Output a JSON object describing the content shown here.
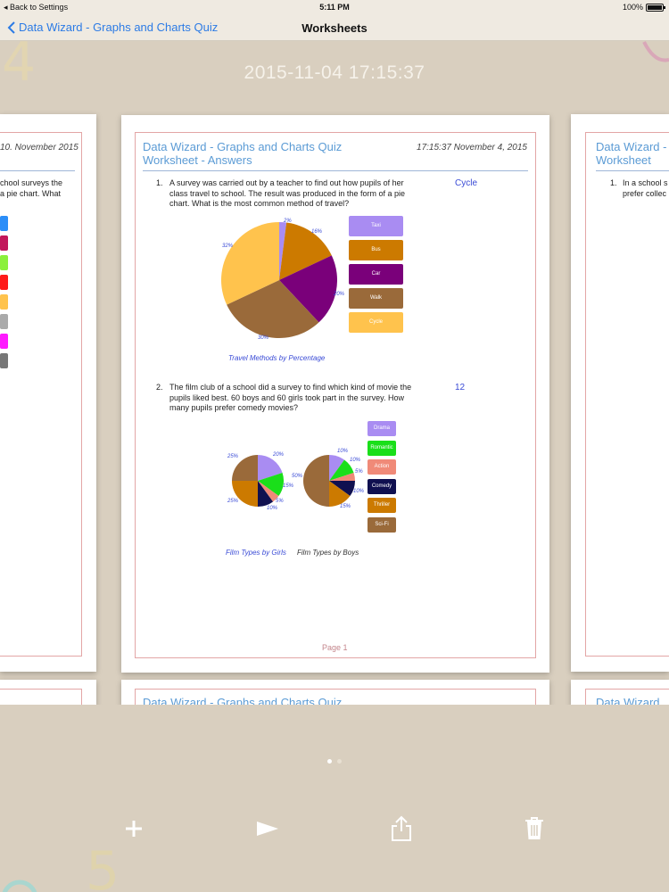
{
  "status": {
    "back_label": "Back to Settings",
    "time": "5:11 PM",
    "battery": "100%",
    "battery_level": 1.0
  },
  "nav": {
    "back_label": "Data Wizard - Graphs and Charts Quiz",
    "title": "Worksheets"
  },
  "header": {
    "datetime": "2015-11-04 17:15:37"
  },
  "decor": {
    "top_digit": "4",
    "bottom_digit": "5"
  },
  "left_page": {
    "date": "10. November 2015",
    "q_lines": [
      "chool surveys the",
      "a pie chart.  What"
    ],
    "swatches": [
      "#2c8ef8",
      "#c2185b",
      "#8bf03c",
      "#ff1a1a",
      "#ffc34d",
      "#aaaaaa",
      "#ff1aff",
      "#777777"
    ]
  },
  "main_page": {
    "title_line1": "Data Wizard - Graphs and Charts Quiz",
    "title_line2": "Worksheet - Answers",
    "date": "17:15:37  November 4, 2015",
    "q1": {
      "num": "1.",
      "lines": [
        "A survey was carried out by a teacher to find out how pupils of her",
        "class travel to school.  The result was produced in the form of a pie",
        "chart.  What is the most common method of travel?"
      ],
      "answer": "Cycle",
      "caption": "Travel Methods by Percentage",
      "legend": [
        {
          "label": "Taxi",
          "color": "#a98cf2"
        },
        {
          "label": "Bus",
          "color": "#cc7a00"
        },
        {
          "label": "Car",
          "color": "#7a007a"
        },
        {
          "label": "Walk",
          "color": "#9a6a3a"
        },
        {
          "label": "Cycle",
          "color": "#ffc34d"
        }
      ],
      "slice_labels": [
        "2%",
        "16%",
        "20%",
        "30%",
        "32%"
      ]
    },
    "q2": {
      "num": "2.",
      "lines": [
        "The film club of a school did a survey to find which kind of movie the",
        "pupils liked best.  60 boys and 60 girls took part in the survey.  How",
        "many pupils prefer comedy movies?"
      ],
      "answer": "12",
      "caption_girls": "Film Types by Girls",
      "caption_boys": "Film Types by Boys",
      "legend": [
        {
          "label": "Drama",
          "color": "#a98cf2"
        },
        {
          "label": "Romantic",
          "color": "#1adf1a"
        },
        {
          "label": "Action",
          "color": "#f08a78"
        },
        {
          "label": "Comedy",
          "color": "#101050"
        },
        {
          "label": "Thriller",
          "color": "#cc7a00"
        },
        {
          "label": "Sci-Fi",
          "color": "#9a6a3a"
        }
      ],
      "girls_labels": [
        "20%",
        "15%",
        "5%",
        "10%",
        "25%",
        "25%"
      ],
      "boys_labels": [
        "10%",
        "10%",
        "5%",
        "10%",
        "15%",
        "50%"
      ]
    },
    "page_label": "Page 1"
  },
  "next_page_peek": {
    "title": "Data Wizard - Graphs and Charts Quiz"
  },
  "right_page": {
    "title_line1": "Data Wizard -",
    "title_line2": "Worksheet",
    "q_num": "1.",
    "q_lines": [
      "In a school s",
      "prefer collec"
    ],
    "peek_title": "Data Wizard"
  },
  "chart_data": [
    {
      "type": "pie",
      "title": "Travel Methods by Percentage",
      "categories": [
        "Taxi",
        "Bus",
        "Car",
        "Walk",
        "Cycle"
      ],
      "values": [
        2,
        16,
        20,
        30,
        32
      ],
      "colors": [
        "#a98cf2",
        "#cc7a00",
        "#7a007a",
        "#9a6a3a",
        "#ffc34d"
      ]
    },
    {
      "type": "pie",
      "title": "Film Types by Girls",
      "categories": [
        "Drama",
        "Romantic",
        "Action",
        "Comedy",
        "Thriller",
        "Sci-Fi"
      ],
      "values": [
        20,
        15,
        5,
        10,
        25,
        25
      ],
      "colors": [
        "#a98cf2",
        "#1adf1a",
        "#f08a78",
        "#101050",
        "#cc7a00",
        "#9a6a3a"
      ]
    },
    {
      "type": "pie",
      "title": "Film Types by Boys",
      "categories": [
        "Drama",
        "Romantic",
        "Action",
        "Comedy",
        "Thriller",
        "Sci-Fi"
      ],
      "values": [
        10,
        10,
        5,
        10,
        15,
        50
      ],
      "colors": [
        "#a98cf2",
        "#1adf1a",
        "#f08a78",
        "#101050",
        "#cc7a00",
        "#9a6a3a"
      ]
    }
  ]
}
